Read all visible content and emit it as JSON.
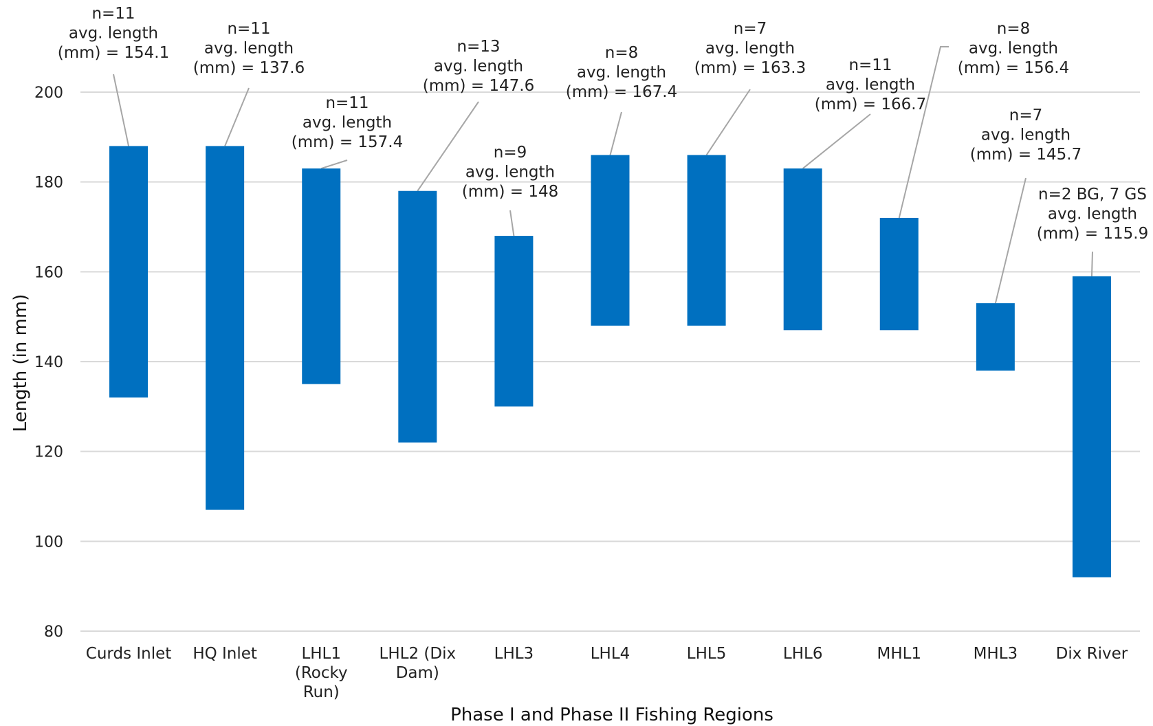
{
  "chart_data": {
    "type": "bar",
    "subtype": "floating-range",
    "xlabel": "Phase I and Phase II Fishing Regions",
    "ylabel": "Length (in mm)",
    "ylim": [
      80,
      200
    ],
    "yticks": [
      "80",
      "100",
      "120",
      "140",
      "160",
      "180",
      "200"
    ],
    "grid": true,
    "bar_color": "#0070C0",
    "categories": [
      [
        "Curds Inlet"
      ],
      [
        "HQ Inlet"
      ],
      [
        "LHL1",
        "(Rocky",
        "Run)"
      ],
      [
        "LHL2 (Dix",
        "Dam)"
      ],
      [
        "LHL3"
      ],
      [
        "LHL4"
      ],
      [
        "LHL5"
      ],
      [
        "LHL6"
      ],
      [
        "MHL1"
      ],
      [
        "MHL3"
      ],
      [
        "Dix River"
      ]
    ],
    "low": [
      132,
      107,
      135,
      122,
      130,
      148,
      148,
      147,
      147,
      138,
      92
    ],
    "high": [
      188,
      188,
      183,
      178,
      168,
      186,
      186,
      183,
      172,
      153,
      159
    ],
    "annotations": [
      [
        "n=11",
        "avg. length",
        "(mm) = 154.1"
      ],
      [
        "n=11",
        "avg. length",
        "(mm) = 137.6"
      ],
      [
        "n=11",
        "avg. length",
        "(mm) = 157.4"
      ],
      [
        "n=13",
        "avg. length",
        "(mm) = 147.6"
      ],
      [
        "n=9",
        "avg. length",
        "(mm) = 148"
      ],
      [
        "n=8",
        "avg. length",
        "(mm) = 167.4"
      ],
      [
        "n=7",
        "avg. length",
        "(mm) = 163.3"
      ],
      [
        "n=11",
        "avg. length",
        "(mm) = 166.7"
      ],
      [
        "n=8",
        "avg. length",
        "(mm) = 156.4"
      ],
      [
        "n=7",
        "avg. length",
        "(mm) = 145.7"
      ],
      [
        "n=2 BG, 7 GS",
        "avg. length",
        "(mm) = 115.9"
      ]
    ]
  }
}
